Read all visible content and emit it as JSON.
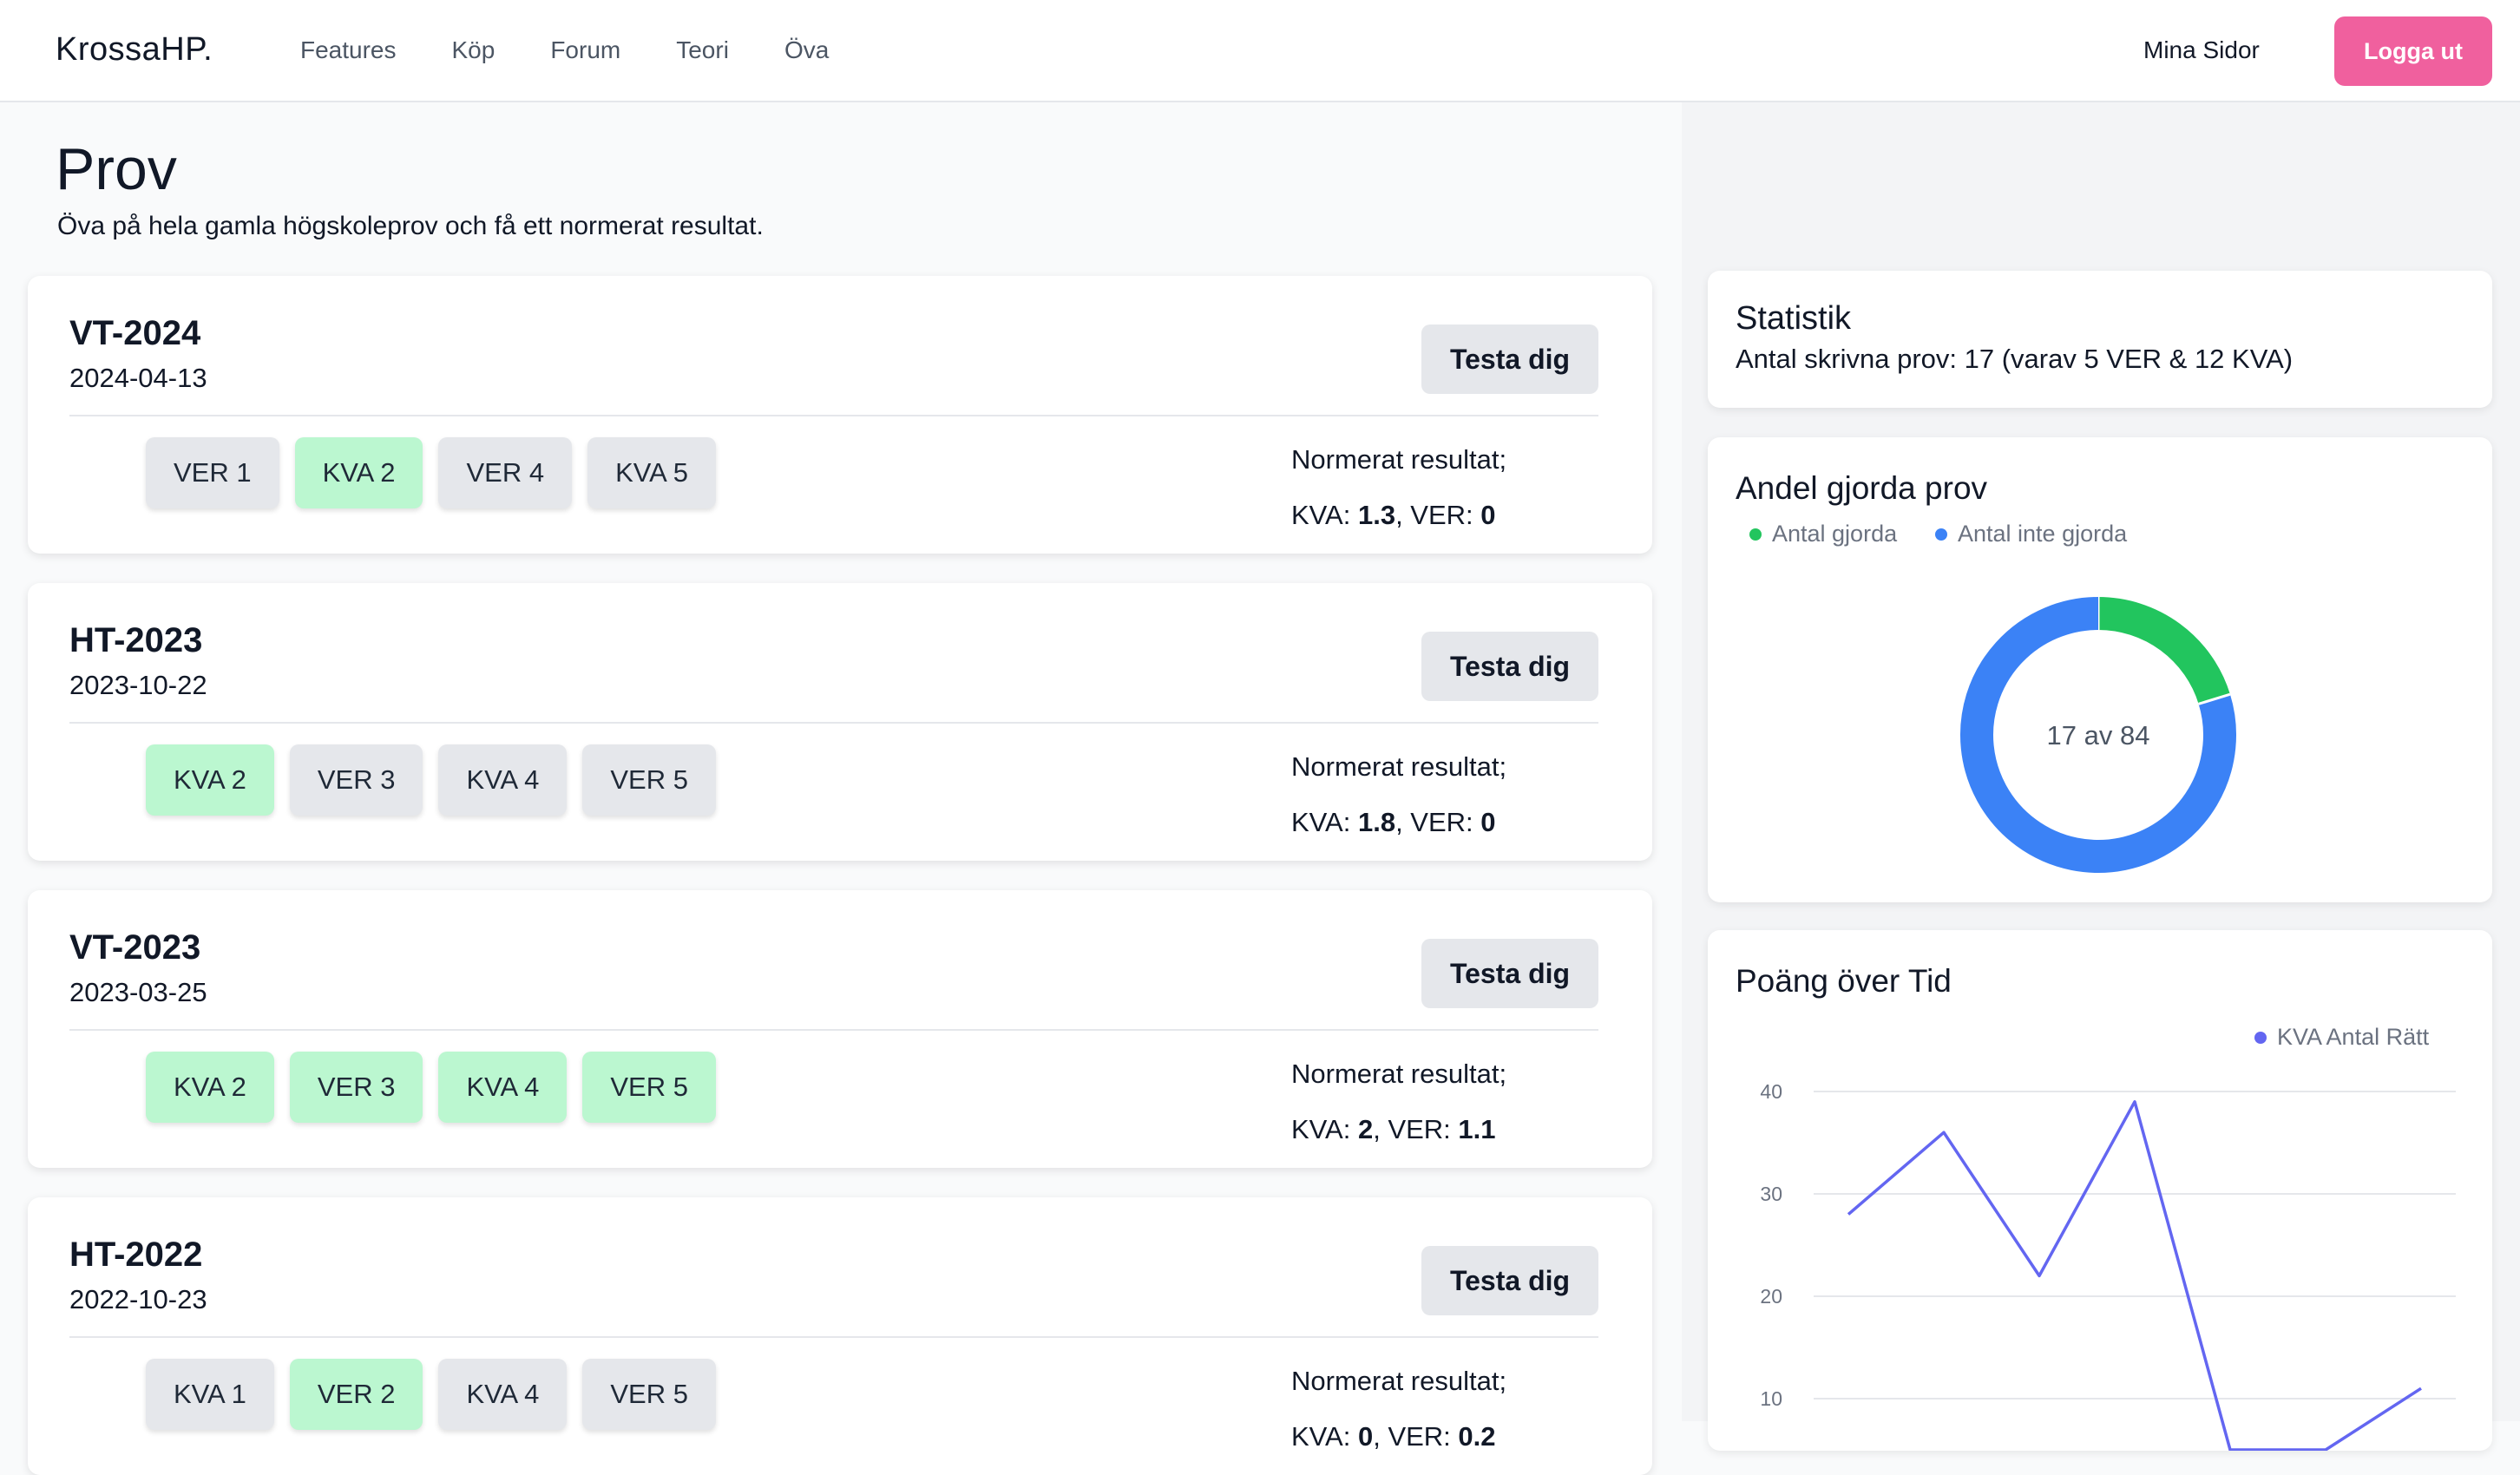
{
  "header": {
    "logo": "KrossaHP.",
    "nav": [
      "Features",
      "Köp",
      "Forum",
      "Teori",
      "Öva"
    ],
    "mina_sidor": "Mina Sidor",
    "logout": "Logga ut",
    "logout_color": "#f0609e"
  },
  "page": {
    "title": "Prov",
    "subtitle": "Öva på hela gamla högskoleprov och få ett normerat resultat."
  },
  "exams": [
    {
      "title": "VT-2024",
      "date": "2024-04-13",
      "button": "Testa dig",
      "result_label": "Normerat resultat;",
      "kva_label": "KVA: ",
      "kva": "1.3",
      "ver_label": ", VER: ",
      "ver": "0",
      "parts": [
        {
          "label": "VER 1",
          "done": false
        },
        {
          "label": "KVA 2",
          "done": true
        },
        {
          "label": "VER 4",
          "done": false
        },
        {
          "label": "KVA 5",
          "done": false
        }
      ]
    },
    {
      "title": "HT-2023",
      "date": "2023-10-22",
      "button": "Testa dig",
      "result_label": "Normerat resultat;",
      "kva_label": "KVA: ",
      "kva": "1.8",
      "ver_label": ", VER: ",
      "ver": "0",
      "parts": [
        {
          "label": "KVA 2",
          "done": true
        },
        {
          "label": "VER 3",
          "done": false
        },
        {
          "label": "KVA 4",
          "done": false
        },
        {
          "label": "VER 5",
          "done": false
        }
      ]
    },
    {
      "title": "VT-2023",
      "date": "2023-03-25",
      "button": "Testa dig",
      "result_label": "Normerat resultat;",
      "kva_label": "KVA: ",
      "kva": "2",
      "ver_label": ", VER: ",
      "ver": "1.1",
      "parts": [
        {
          "label": "KVA 2",
          "done": true
        },
        {
          "label": "VER 3",
          "done": true
        },
        {
          "label": "KVA 4",
          "done": true
        },
        {
          "label": "VER 5",
          "done": true
        }
      ]
    },
    {
      "title": "HT-2022",
      "date": "2022-10-23",
      "button": "Testa dig",
      "result_label": "Normerat resultat;",
      "kva_label": "KVA: ",
      "kva": "0",
      "ver_label": ", VER: ",
      "ver": "0.2",
      "parts": [
        {
          "label": "KVA 1",
          "done": false
        },
        {
          "label": "VER 2",
          "done": true
        },
        {
          "label": "KVA 4",
          "done": false
        },
        {
          "label": "VER 5",
          "done": false
        }
      ]
    }
  ],
  "stats": {
    "title": "Statistik",
    "text": "Antal skrivna prov: 17 (varav 5 VER & 12 KVA)"
  },
  "chart_data": [
    {
      "type": "pie",
      "title": "Andel gjorda prov",
      "center_label": "17 av 84",
      "labels": [
        "Antal gjorda",
        "Antal inte gjorda"
      ],
      "values": [
        17,
        67
      ],
      "colors": [
        "#22c55e",
        "#3b82f6"
      ],
      "legend": "top-left"
    },
    {
      "type": "line",
      "title": "Poäng över Tid",
      "series": [
        {
          "name": "KVA Antal Rätt",
          "color": "#6366f1",
          "values": [
            28,
            36,
            22,
            39,
            5,
            5,
            11
          ]
        }
      ],
      "x": [
        1,
        2,
        3,
        4,
        5,
        6,
        7
      ],
      "ylim": [
        5,
        42
      ],
      "yticks": [
        10,
        20,
        30,
        40
      ],
      "grid": true,
      "legend": "top-right"
    }
  ]
}
